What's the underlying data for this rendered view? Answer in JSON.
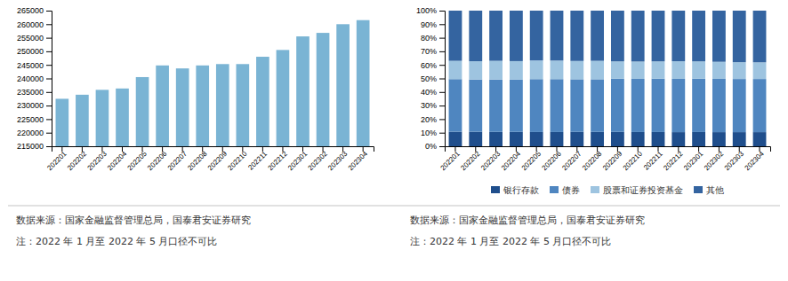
{
  "chart_data": [
    {
      "type": "bar",
      "categories": [
        "202201",
        "202202",
        "202203",
        "202204",
        "202205",
        "202206",
        "202207",
        "202208",
        "202209",
        "202210",
        "202211",
        "202212",
        "202301",
        "202302",
        "202303",
        "202304"
      ],
      "values": [
        232500,
        234000,
        235800,
        236300,
        240500,
        244800,
        243700,
        244800,
        245300,
        245300,
        248000,
        250500,
        255500,
        256800,
        260000,
        261500
      ],
      "color": "#7ab4d4",
      "ylim": [
        215000,
        265000
      ],
      "yticks": [
        215000,
        220000,
        225000,
        230000,
        235000,
        240000,
        245000,
        250000,
        255000,
        260000,
        265000
      ],
      "grid": false,
      "annotations": [
        "数据来源：国家金融监督管理总局，国泰君安证券研究",
        "注：2022 年 1 月至 2022 年 5 月口径不可比"
      ]
    },
    {
      "type": "bar",
      "stacked": true,
      "categories": [
        "202201",
        "202202",
        "202203",
        "202204",
        "202205",
        "202206",
        "202207",
        "202208",
        "202209",
        "202210",
        "202211",
        "202212",
        "202301",
        "202302",
        "202303",
        "202304"
      ],
      "series": [
        {
          "name": "银行存款",
          "color": "#1f4e8c",
          "values": [
            0.107,
            0.107,
            0.106,
            0.106,
            0.105,
            0.105,
            0.106,
            0.106,
            0.106,
            0.105,
            0.105,
            0.104,
            0.105,
            0.104,
            0.104,
            0.104
          ]
        },
        {
          "name": "债券",
          "color": "#4f86c0",
          "values": [
            0.388,
            0.385,
            0.386,
            0.385,
            0.39,
            0.39,
            0.388,
            0.388,
            0.392,
            0.392,
            0.393,
            0.393,
            0.393,
            0.393,
            0.392,
            0.392
          ]
        },
        {
          "name": "股票和证券投资基金",
          "color": "#9ec4e0",
          "values": [
            0.135,
            0.135,
            0.138,
            0.137,
            0.138,
            0.137,
            0.135,
            0.136,
            0.128,
            0.128,
            0.128,
            0.13,
            0.128,
            0.126,
            0.124,
            0.123
          ]
        },
        {
          "name": "其他",
          "color": "#3464a0",
          "values": [
            0.37,
            0.373,
            0.37,
            0.372,
            0.367,
            0.368,
            0.371,
            0.37,
            0.374,
            0.375,
            0.374,
            0.373,
            0.374,
            0.377,
            0.38,
            0.381
          ]
        }
      ],
      "ylim": [
        0,
        1.0
      ],
      "yticks": [
        {
          "value": 0,
          "label": "0%"
        },
        {
          "value": 0.1,
          "label": "10%"
        },
        {
          "value": 0.2,
          "label": "20%"
        },
        {
          "value": 0.3,
          "label": "30%"
        },
        {
          "value": 0.4,
          "label": "40%"
        },
        {
          "value": 0.5,
          "label": "50%"
        },
        {
          "value": 0.6,
          "label": "60%"
        },
        {
          "value": 0.7,
          "label": "70%"
        },
        {
          "value": 0.8,
          "label": "80%"
        },
        {
          "value": 0.9,
          "label": "90%"
        },
        {
          "value": 1.0,
          "label": "100%"
        }
      ],
      "grid": false,
      "legend": "bottom",
      "annotations": [
        "数据来源：国家金融监督管理总局，国泰君安证券研究",
        "注：2022 年 1 月至 2022 年 5 月口径不可比"
      ]
    }
  ]
}
